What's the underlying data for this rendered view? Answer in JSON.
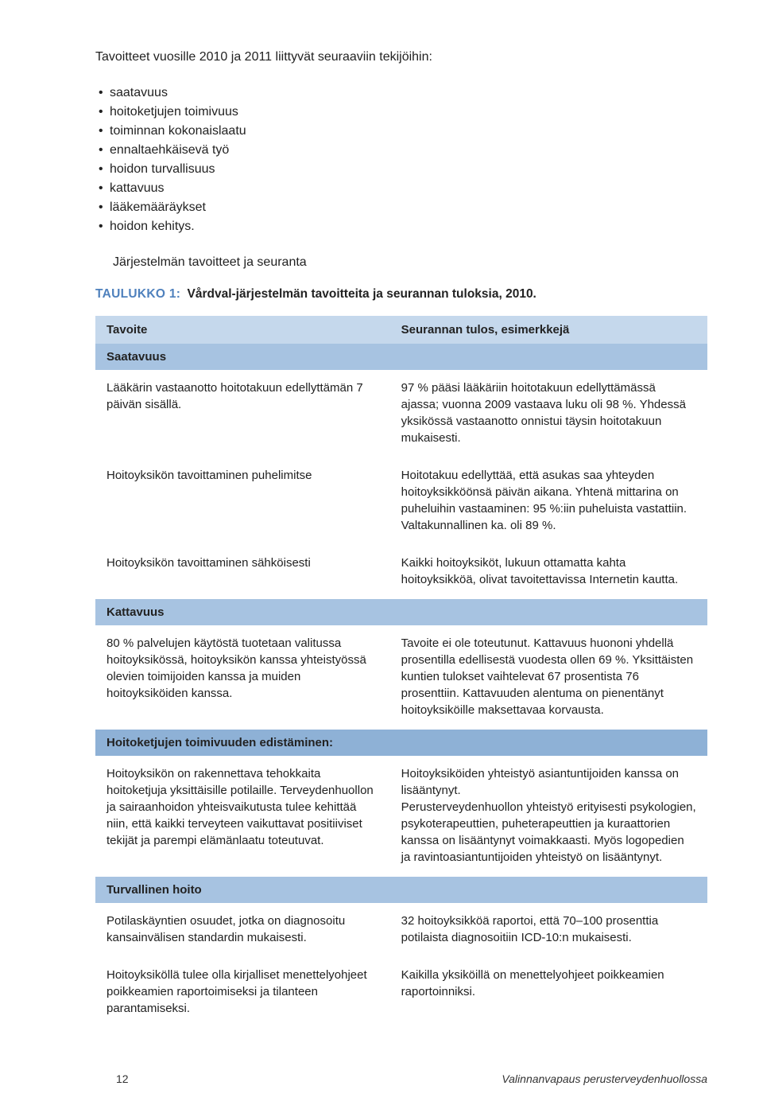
{
  "intro": {
    "lead": "Tavoitteet vuosille 2010 ja 2011 liittyvät seuraaviin tekijöihin:",
    "bullets": [
      "saatavuus",
      "hoitoketjujen toimivuus",
      "toiminnan kokonaislaatu",
      "ennaltaehkäisevä työ",
      "hoidon turvallisuus",
      "kattavuus",
      "lääkemääräykset",
      "hoidon kehitys."
    ],
    "subheading": "Järjestelmän tavoitteet ja seuranta"
  },
  "caption": {
    "label": "TAULUKKO 1:",
    "text": "Vårdval-järjestelmän tavoitteita ja seurannan tuloksia, 2010."
  },
  "table": {
    "header": {
      "left": "Tavoite",
      "right": "Seurannan tulos, esimerkkejä"
    },
    "sections": [
      {
        "title": "Saatavuus",
        "rows": [
          {
            "left": "Lääkärin vastaanotto hoitotakuun edellyttämän 7 päivän sisällä.",
            "right": "97 % pääsi lääkäriin hoitotakuun edellyttämässä ajassa; vuonna 2009 vastaava luku oli 98 %. Yhdessä yksikössä vastaanotto onnistui täysin hoitotakuun mukaisesti."
          },
          {
            "left": "Hoitoyksikön tavoittaminen puhelimitse",
            "right": "Hoitotakuu edellyttää, että asukas saa yhteyden hoitoyksikköönsä päivän aikana. Yhtenä mittarina on puheluihin vastaaminen: 95 %:iin puheluista vastattiin. Valtakunnallinen ka. oli 89 %."
          },
          {
            "left": "Hoitoyksikön tavoittaminen sähköisesti",
            "right": "Kaikki hoitoyksiköt, lukuun ottamatta kahta hoitoyksikköä, olivat tavoitettavissa Internetin kautta."
          }
        ]
      },
      {
        "title": "Kattavuus",
        "rows": [
          {
            "left": "80 % palvelujen käytöstä tuotetaan valitussa hoitoyksikössä, hoitoyksikön kanssa yhteistyössä olevien toimijoiden kanssa ja muiden hoitoyksiköiden kanssa.",
            "right": "Tavoite ei ole toteutunut. Kattavuus huononi yhdellä prosentilla edellisestä vuodesta ollen 69 %. Yksittäisten kuntien tulokset vaihtelevat 67 prosentista 76 prosenttiin. Kattavuuden alentuma on pienentänyt hoitoyksiköille maksettavaa korvausta."
          }
        ]
      },
      {
        "title": "Hoitoketjujen toimivuuden edistäminen:",
        "dark": true,
        "rows": [
          {
            "left": "Hoitoyksikön on rakennettava tehokkaita hoitoketjuja yksittäisille potilaille. Terveydenhuollon ja sairaanhoidon yhteisvaikutusta tulee kehittää niin, että kaikki terveyteen vaikuttavat positiiviset tekijät ja parempi elämänlaatu toteutuvat.",
            "right": "Hoitoyksiköiden yhteistyö asiantuntijoiden kanssa on lisääntynyt.\nPerusterveydenhuollon yhteistyö erityisesti psykologien, psykoterapeuttien, puheterapeuttien ja kuraattorien kanssa on lisääntynyt voimakkaasti. Myös logopedien ja ravintoasiantuntijoiden yhteistyö on lisääntynyt."
          }
        ]
      },
      {
        "title": "Turvallinen hoito",
        "rows": [
          {
            "left": "Potilaskäyntien osuudet, jotka on diagnosoitu kansainvälisen standardin mukaisesti.",
            "right": "32 hoitoyksikköä raportoi, että 70–100 prosenttia potilaista diagnosoitiin ICD-10:n mukaisesti."
          },
          {
            "left": "Hoitoyksiköllä tulee olla kirjalliset menettelyohjeet poikkeamien raportoimiseksi ja tilanteen parantamiseksi.",
            "right": "Kaikilla yksiköillä on menettelyohjeet poikkeamien raportoinniksi."
          }
        ]
      }
    ]
  },
  "footer": {
    "page": "12",
    "title": "Valinnanvapaus perusterveydenhuollossa"
  }
}
